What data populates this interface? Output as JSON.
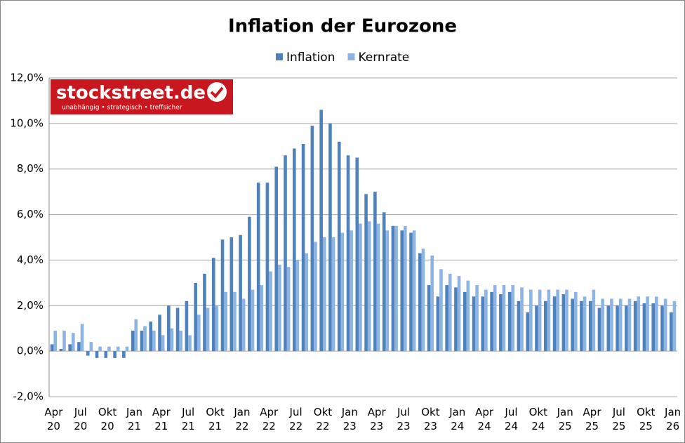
{
  "chart_data": {
    "type": "bar",
    "title": "Inflation der Eurozone",
    "logo": {
      "name": "stockstreet.de",
      "tagline": "unabhängig • strategisch • treffsicher"
    },
    "categories": [
      "Apr 20",
      null,
      null,
      "Jul 20",
      null,
      null,
      "Okt 20",
      null,
      null,
      "Jan 21",
      null,
      null,
      "Apr 21",
      null,
      null,
      "Jul 21",
      null,
      null,
      "Okt 21",
      null,
      null,
      "Jan 22",
      null,
      null,
      "Apr 22",
      null,
      null,
      "Jul 22",
      null,
      null,
      "Okt 22",
      null,
      null,
      "Jan 23",
      null,
      null,
      "Apr 23",
      null,
      null,
      "Jul 23",
      null,
      null,
      "Okt 23",
      null,
      null,
      "Jan 24",
      null,
      null,
      "Apr 24",
      null,
      null,
      "Jul 24",
      null,
      null,
      "Okt 24",
      null,
      null,
      "Jan 25",
      null,
      null,
      "Apr 25",
      null,
      null,
      "Jul 25",
      null,
      null,
      "Okt 25",
      null,
      null,
      "Jan 26"
    ],
    "series": [
      {
        "name": "Inflation",
        "color": "#4f81bd",
        "values": [
          0.3,
          0.1,
          0.3,
          0.4,
          -0.2,
          -0.3,
          -0.3,
          -0.3,
          -0.3,
          0.9,
          0.9,
          1.3,
          1.6,
          2.0,
          1.9,
          2.2,
          3.0,
          3.4,
          4.1,
          4.9,
          5.0,
          5.1,
          5.9,
          7.4,
          7.4,
          8.1,
          8.6,
          8.9,
          9.1,
          9.9,
          10.6,
          10.0,
          9.2,
          8.6,
          8.5,
          6.9,
          7.0,
          6.1,
          5.5,
          5.3,
          5.2,
          4.3,
          2.9,
          2.4,
          2.9,
          2.8,
          2.6,
          2.4,
          2.4,
          2.6,
          2.5,
          2.6,
          2.2,
          1.7,
          2.0,
          2.2,
          2.4,
          2.5,
          2.3,
          2.2,
          2.2,
          1.9,
          2.0,
          2.0,
          2.0,
          2.2,
          2.1,
          2.1,
          2.0,
          1.7
        ]
      },
      {
        "name": "Kernrate",
        "color": "#8eb4e3",
        "values": [
          0.9,
          0.9,
          0.8,
          1.2,
          0.4,
          0.2,
          0.2,
          0.2,
          0.2,
          1.4,
          1.1,
          0.9,
          0.7,
          1.0,
          0.9,
          0.7,
          1.6,
          1.9,
          2.0,
          2.6,
          2.6,
          2.3,
          2.7,
          2.9,
          3.5,
          3.8,
          3.7,
          4.0,
          4.3,
          4.8,
          5.0,
          5.0,
          5.2,
          5.3,
          5.6,
          5.7,
          5.6,
          5.3,
          5.5,
          5.5,
          5.3,
          4.5,
          4.2,
          3.6,
          3.4,
          3.3,
          3.1,
          2.9,
          2.7,
          2.9,
          2.9,
          2.9,
          2.8,
          2.7,
          2.7,
          2.7,
          2.7,
          2.7,
          2.6,
          2.4,
          2.7,
          2.3,
          2.3,
          2.3,
          2.3,
          2.4,
          2.4,
          2.4,
          2.3,
          2.2
        ]
      }
    ],
    "ylim": [
      -2,
      12
    ],
    "yticks": [
      {
        "value": -2,
        "label": "-2,0%"
      },
      {
        "value": 0,
        "label": "0,0%"
      },
      {
        "value": 2,
        "label": "2,0%"
      },
      {
        "value": 4,
        "label": "4,0%"
      },
      {
        "value": 6,
        "label": "6,0%"
      },
      {
        "value": 8,
        "label": "8,0%"
      },
      {
        "value": 10,
        "label": "10,0%"
      },
      {
        "value": 12,
        "label": "12,0%"
      }
    ],
    "grid": true
  }
}
